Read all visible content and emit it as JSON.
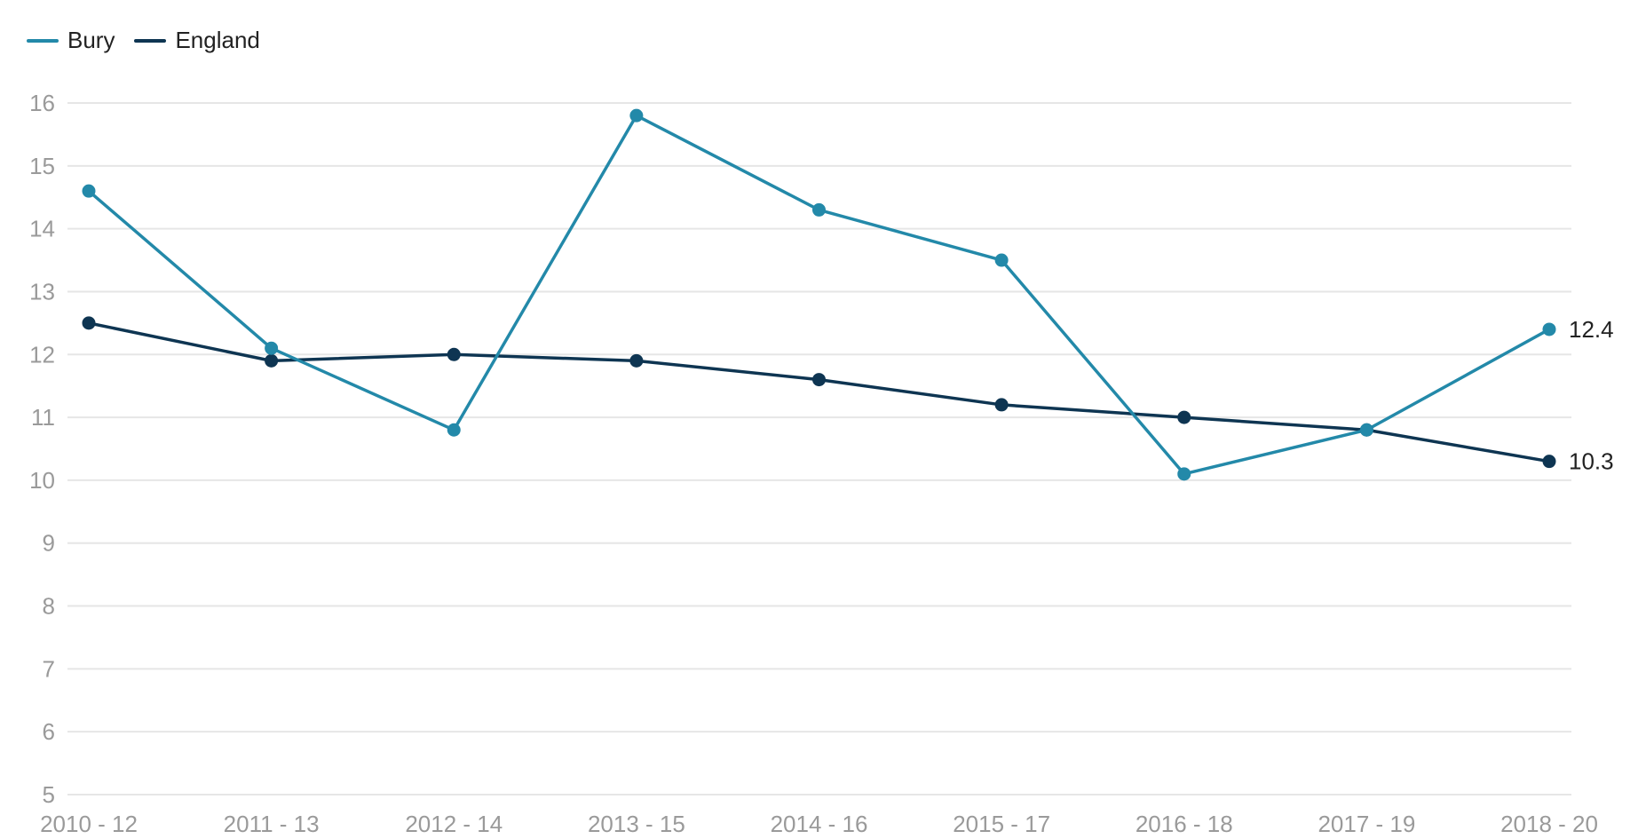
{
  "chart_data": {
    "type": "line",
    "title": "",
    "xlabel": "",
    "ylabel": "",
    "categories": [
      "2010 - 12",
      "2011 - 13",
      "2012 - 14",
      "2013 - 15",
      "2014 - 16",
      "2015 - 17",
      "2016 - 18",
      "2017 - 19",
      "2018 - 20"
    ],
    "ylim": [
      5,
      16
    ],
    "yticks": [
      5,
      6,
      7,
      8,
      9,
      10,
      11,
      12,
      13,
      14,
      15,
      16
    ],
    "grid": "horizontal",
    "legend_position": "top-left",
    "series": [
      {
        "name": "Bury",
        "color": "#2389a9",
        "values": [
          14.6,
          12.1,
          10.8,
          15.8,
          14.3,
          13.5,
          10.1,
          10.8,
          12.4
        ],
        "end_label": "12.4"
      },
      {
        "name": "England",
        "color": "#0e3552",
        "values": [
          12.5,
          11.9,
          12.0,
          11.9,
          11.6,
          11.2,
          11.0,
          10.8,
          10.3
        ],
        "end_label": "10.3"
      }
    ]
  },
  "colors": {
    "grid": "#e6e6e6",
    "tick_text": "#9a9a9a",
    "label_text": "#222222"
  }
}
